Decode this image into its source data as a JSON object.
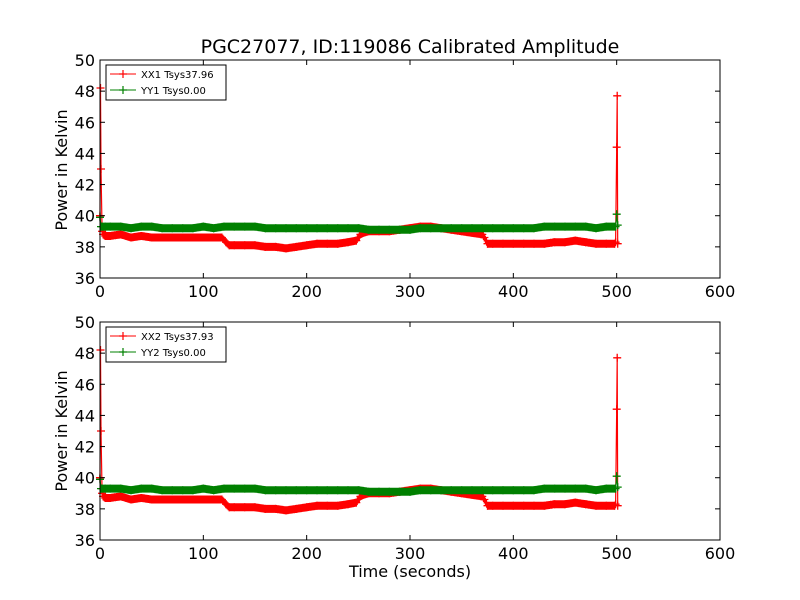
{
  "chart_data": [
    {
      "type": "line",
      "title": "PGC27077, ID:119086 Calibrated Amplitude",
      "xlabel": "",
      "ylabel": "Power in Kelvin",
      "xlim": [
        0,
        600
      ],
      "ylim": [
        36,
        50
      ],
      "xticks": [
        0,
        100,
        200,
        300,
        400,
        500,
        600
      ],
      "yticks": [
        36,
        38,
        40,
        42,
        44,
        46,
        48,
        50
      ],
      "legend_position": "top-left",
      "series": [
        {
          "name": "XX1 Tsys37.96",
          "color": "#ff0000",
          "x": [
            0,
            0.5,
            1,
            2,
            3,
            5,
            10,
            20,
            30,
            40,
            50,
            60,
            70,
            80,
            90,
            100,
            110,
            118,
            122,
            125,
            130,
            140,
            150,
            160,
            170,
            180,
            190,
            200,
            210,
            220,
            230,
            240,
            248,
            252,
            255,
            260,
            270,
            280,
            290,
            300,
            310,
            320,
            330,
            340,
            350,
            360,
            370,
            372,
            375,
            380,
            390,
            400,
            410,
            420,
            430,
            440,
            450,
            460,
            470,
            480,
            490,
            498,
            499,
            500,
            500.5,
            501
          ],
          "values": [
            40.0,
            48.2,
            43.0,
            39.0,
            38.8,
            38.7,
            38.7,
            38.8,
            38.6,
            38.7,
            38.6,
            38.6,
            38.6,
            38.6,
            38.6,
            38.6,
            38.6,
            38.6,
            38.3,
            38.1,
            38.1,
            38.1,
            38.1,
            38.0,
            38.0,
            37.9,
            38.0,
            38.1,
            38.2,
            38.2,
            38.2,
            38.3,
            38.4,
            38.8,
            38.9,
            39.0,
            39.0,
            39.0,
            39.1,
            39.2,
            39.3,
            39.3,
            39.2,
            39.1,
            39.0,
            38.9,
            38.8,
            38.6,
            38.2,
            38.2,
            38.2,
            38.2,
            38.2,
            38.2,
            38.2,
            38.3,
            38.3,
            38.4,
            38.3,
            38.2,
            38.2,
            38.2,
            38.3,
            44.4,
            47.7,
            38.2
          ]
        },
        {
          "name": "YY1 Tsys0.00",
          "color": "#008000",
          "x": [
            0,
            1,
            2,
            5,
            10,
            20,
            30,
            40,
            50,
            60,
            70,
            80,
            90,
            100,
            110,
            120,
            130,
            140,
            150,
            160,
            170,
            180,
            190,
            200,
            210,
            220,
            230,
            240,
            250,
            260,
            270,
            280,
            290,
            300,
            310,
            320,
            330,
            340,
            350,
            360,
            370,
            380,
            390,
            400,
            410,
            420,
            430,
            440,
            450,
            460,
            470,
            480,
            490,
            499,
            500,
            501
          ],
          "values": [
            39.9,
            39.3,
            39.3,
            39.3,
            39.3,
            39.3,
            39.2,
            39.3,
            39.3,
            39.2,
            39.2,
            39.2,
            39.2,
            39.3,
            39.2,
            39.3,
            39.3,
            39.3,
            39.3,
            39.2,
            39.2,
            39.2,
            39.2,
            39.2,
            39.2,
            39.2,
            39.2,
            39.2,
            39.2,
            39.1,
            39.1,
            39.1,
            39.1,
            39.1,
            39.2,
            39.2,
            39.2,
            39.2,
            39.2,
            39.2,
            39.2,
            39.2,
            39.2,
            39.2,
            39.2,
            39.2,
            39.3,
            39.3,
            39.3,
            39.3,
            39.3,
            39.2,
            39.3,
            39.3,
            40.1,
            39.4
          ]
        }
      ]
    },
    {
      "type": "line",
      "title": "",
      "xlabel": "Time (seconds)",
      "ylabel": "Power in Kelvin",
      "xlim": [
        0,
        600
      ],
      "ylim": [
        36,
        50
      ],
      "xticks": [
        0,
        100,
        200,
        300,
        400,
        500,
        600
      ],
      "yticks": [
        36,
        38,
        40,
        42,
        44,
        46,
        48,
        50
      ],
      "legend_position": "top-left",
      "series": [
        {
          "name": "XX2 Tsys37.93",
          "color": "#ff0000",
          "x": [
            0,
            0.5,
            1,
            2,
            3,
            5,
            10,
            20,
            30,
            40,
            50,
            60,
            70,
            80,
            90,
            100,
            110,
            118,
            122,
            125,
            130,
            140,
            150,
            160,
            170,
            180,
            190,
            200,
            210,
            220,
            230,
            240,
            248,
            252,
            255,
            260,
            270,
            280,
            290,
            300,
            310,
            320,
            330,
            340,
            350,
            360,
            370,
            372,
            375,
            380,
            390,
            400,
            410,
            420,
            430,
            440,
            450,
            460,
            470,
            480,
            490,
            498,
            499,
            500,
            500.5,
            501
          ],
          "values": [
            40.0,
            48.2,
            43.0,
            39.0,
            38.8,
            38.7,
            38.7,
            38.8,
            38.6,
            38.7,
            38.6,
            38.6,
            38.6,
            38.6,
            38.6,
            38.6,
            38.6,
            38.6,
            38.3,
            38.1,
            38.1,
            38.1,
            38.1,
            38.0,
            38.0,
            37.9,
            38.0,
            38.1,
            38.2,
            38.2,
            38.2,
            38.3,
            38.4,
            38.8,
            38.9,
            39.0,
            39.0,
            39.0,
            39.1,
            39.2,
            39.3,
            39.3,
            39.2,
            39.1,
            39.0,
            38.9,
            38.8,
            38.6,
            38.2,
            38.2,
            38.2,
            38.2,
            38.2,
            38.2,
            38.2,
            38.3,
            38.3,
            38.4,
            38.3,
            38.2,
            38.2,
            38.2,
            38.3,
            44.4,
            47.7,
            38.2
          ]
        },
        {
          "name": "YY2 Tsys0.00",
          "color": "#008000",
          "x": [
            0,
            1,
            2,
            5,
            10,
            20,
            30,
            40,
            50,
            60,
            70,
            80,
            90,
            100,
            110,
            120,
            130,
            140,
            150,
            160,
            170,
            180,
            190,
            200,
            210,
            220,
            230,
            240,
            250,
            260,
            270,
            280,
            290,
            300,
            310,
            320,
            330,
            340,
            350,
            360,
            370,
            380,
            390,
            400,
            410,
            420,
            430,
            440,
            450,
            460,
            470,
            480,
            490,
            499,
            500,
            501
          ],
          "values": [
            39.9,
            39.3,
            39.3,
            39.3,
            39.3,
            39.3,
            39.2,
            39.3,
            39.3,
            39.2,
            39.2,
            39.2,
            39.2,
            39.3,
            39.2,
            39.3,
            39.3,
            39.3,
            39.3,
            39.2,
            39.2,
            39.2,
            39.2,
            39.2,
            39.2,
            39.2,
            39.2,
            39.2,
            39.2,
            39.1,
            39.1,
            39.1,
            39.1,
            39.1,
            39.2,
            39.2,
            39.2,
            39.2,
            39.2,
            39.2,
            39.2,
            39.2,
            39.2,
            39.2,
            39.2,
            39.2,
            39.3,
            39.3,
            39.3,
            39.3,
            39.3,
            39.2,
            39.3,
            39.3,
            40.1,
            39.4
          ]
        }
      ]
    }
  ]
}
